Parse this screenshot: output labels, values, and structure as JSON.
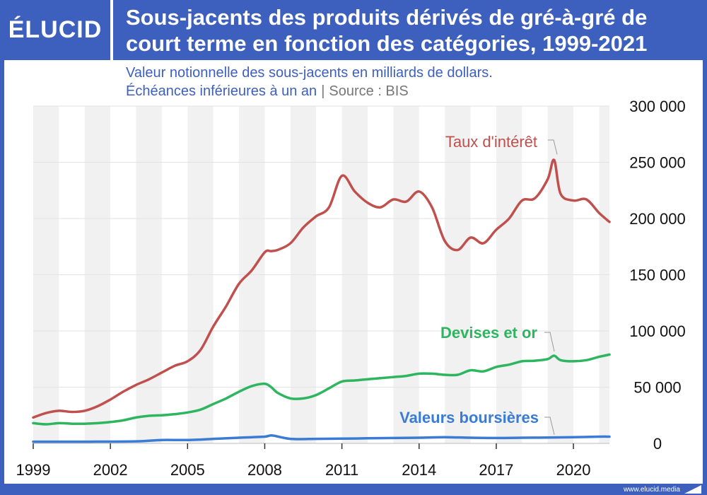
{
  "header": {
    "logo": "ÉLUCID",
    "title_line1": "Sous-jacents des produits dérivés de gré-à-gré de",
    "title_line2": "court terme en fonction des catégories, 1999-2021"
  },
  "subtitle": {
    "line1": "Valeur notionnelle des sous-jacents en milliards de dollars.",
    "line2": "Échéances inférieures à un an",
    "separator": "|",
    "source": "Source : BIS"
  },
  "footer": {
    "url": "www.elucid.media"
  },
  "colors": {
    "brand": "#3d5fbe",
    "interest": "#c0504d",
    "fx": "#2eb55f",
    "equity": "#3a7bd5"
  },
  "chart_data": {
    "type": "line",
    "title": "Sous-jacents des produits dérivés de gré-à-gré de court terme en fonction des catégories, 1999-2021",
    "xlim": [
      1999,
      2021.4
    ],
    "ylim": [
      0,
      300000
    ],
    "x_ticks": [
      1999,
      2002,
      2005,
      2008,
      2011,
      2014,
      2017,
      2020
    ],
    "y_ticks": [
      0,
      50000,
      100000,
      150000,
      200000,
      250000,
      300000
    ],
    "y_tick_labels": [
      "0",
      "50 000",
      "100 000",
      "150 000",
      "200 000",
      "250 000",
      "300 000"
    ],
    "grid": "horizontal",
    "series": [
      {
        "name": "Taux d'intérêt",
        "color": "#c0504d",
        "x": [
          1999,
          1999.5,
          2000,
          2000.5,
          2001,
          2001.5,
          2002,
          2002.5,
          2003,
          2003.5,
          2004,
          2004.5,
          2005,
          2005.5,
          2006,
          2006.5,
          2007,
          2007.5,
          2008,
          2008.25,
          2008.5,
          2009,
          2009.5,
          2010,
          2010.5,
          2011,
          2011.5,
          2012,
          2012.5,
          2013,
          2013.5,
          2014,
          2014.5,
          2015,
          2015.5,
          2016,
          2016.5,
          2017,
          2017.5,
          2018,
          2018.5,
          2019,
          2019.25,
          2019.5,
          2020,
          2020.5,
          2021,
          2021.4
        ],
        "values": [
          23000,
          27000,
          29000,
          28000,
          29000,
          33000,
          39000,
          46000,
          52000,
          57000,
          63000,
          69000,
          73000,
          83000,
          104000,
          122000,
          142000,
          154000,
          170000,
          171000,
          172000,
          178000,
          192000,
          202000,
          210000,
          238000,
          224000,
          214000,
          210000,
          217000,
          215000,
          224000,
          210000,
          180000,
          172000,
          183000,
          178000,
          190000,
          200000,
          216000,
          218000,
          235000,
          252000,
          222000,
          216000,
          217000,
          205000,
          197000
        ]
      },
      {
        "name": "Devises et or",
        "color": "#2eb55f",
        "x": [
          1999,
          1999.5,
          2000,
          2000.5,
          2001,
          2001.5,
          2002,
          2002.5,
          2003,
          2003.5,
          2004,
          2004.5,
          2005,
          2005.5,
          2006,
          2006.5,
          2007,
          2007.5,
          2008,
          2008.25,
          2008.5,
          2009,
          2009.5,
          2010,
          2010.5,
          2011,
          2011.5,
          2012,
          2012.5,
          2013,
          2013.5,
          2014,
          2014.5,
          2015,
          2015.5,
          2016,
          2016.5,
          2017,
          2017.5,
          2018,
          2018.5,
          2019,
          2019.25,
          2019.5,
          2020,
          2020.5,
          2021,
          2021.4
        ],
        "values": [
          18000,
          17000,
          18000,
          17500,
          17500,
          18000,
          19000,
          20500,
          23000,
          24500,
          25000,
          26000,
          27500,
          30000,
          35000,
          40000,
          46000,
          51000,
          53000,
          50000,
          45000,
          40000,
          40000,
          43000,
          49000,
          55000,
          56000,
          57000,
          58000,
          59000,
          60000,
          62000,
          62000,
          61000,
          61000,
          65000,
          64000,
          68000,
          70000,
          73000,
          73500,
          75000,
          78000,
          74000,
          73000,
          74000,
          77000,
          79000
        ]
      },
      {
        "name": "Valeurs boursières",
        "color": "#3a7bd5",
        "x": [
          1999,
          2001,
          2003,
          2004,
          2005,
          2006,
          2007,
          2008,
          2008.3,
          2009,
          2010,
          2011,
          2012,
          2013,
          2014,
          2015,
          2016,
          2017,
          2018,
          2019,
          2020,
          2021,
          2021.4
        ],
        "values": [
          1500,
          1500,
          1800,
          3000,
          3000,
          4000,
          5000,
          6000,
          7000,
          4000,
          4000,
          4200,
          4500,
          4800,
          5000,
          5500,
          5000,
          4800,
          5000,
          5200,
          5500,
          6000,
          6000
        ]
      }
    ]
  }
}
